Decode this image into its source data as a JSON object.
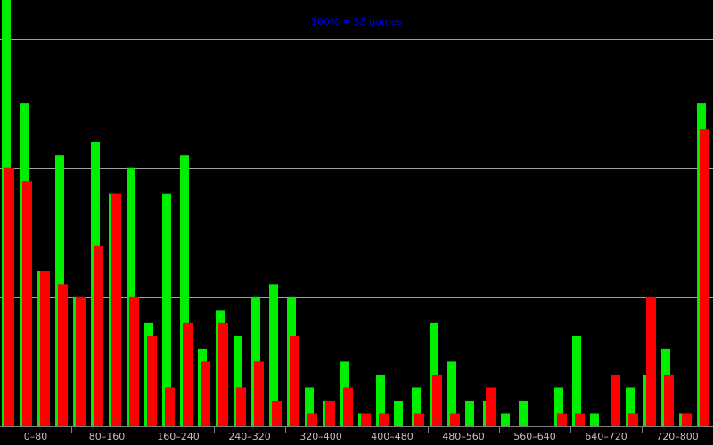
{
  "chart_data": {
    "type": "histogram",
    "title": "100% = 33 games",
    "bins": [
      0,
      20,
      40,
      60,
      80,
      100,
      120,
      140,
      160,
      180,
      200,
      220,
      240,
      260,
      280,
      300,
      320,
      340,
      360,
      380,
      400,
      420,
      440,
      460,
      480,
      500,
      520,
      540,
      560,
      580,
      600,
      620,
      640,
      660,
      680,
      700,
      720,
      740,
      760,
      780,
      800
    ],
    "xlim": [
      0,
      800
    ],
    "range_labels": [
      "0–80",
      "80–160",
      "160–240",
      "240–320",
      "320–400",
      "400–480",
      "480–560",
      "560–640",
      "640–720",
      "720–800"
    ],
    "ylim": [
      0,
      33
    ],
    "ygrid": [
      10,
      20,
      30
    ],
    "series": [
      {
        "color": "#00ee00",
        "values": [
          33,
          25,
          12,
          21,
          10,
          22,
          18,
          20,
          8,
          18,
          21,
          6,
          9,
          7,
          10,
          11,
          10,
          3,
          2,
          5,
          1,
          4,
          2,
          3,
          8,
          5,
          2,
          2,
          1,
          2,
          0,
          3,
          7,
          1,
          0,
          3,
          4,
          6,
          1,
          25
        ]
      },
      {
        "color": "#ff0000",
        "values": [
          20,
          19,
          12,
          11,
          10,
          14,
          18,
          10,
          7,
          3,
          8,
          5,
          8,
          3,
          5,
          2,
          7,
          1,
          2,
          3,
          1,
          1,
          0,
          1,
          4,
          1,
          0,
          3,
          0,
          0,
          0,
          1,
          1,
          0,
          4,
          1,
          10,
          4,
          1,
          23
        ]
      }
    ]
  }
}
